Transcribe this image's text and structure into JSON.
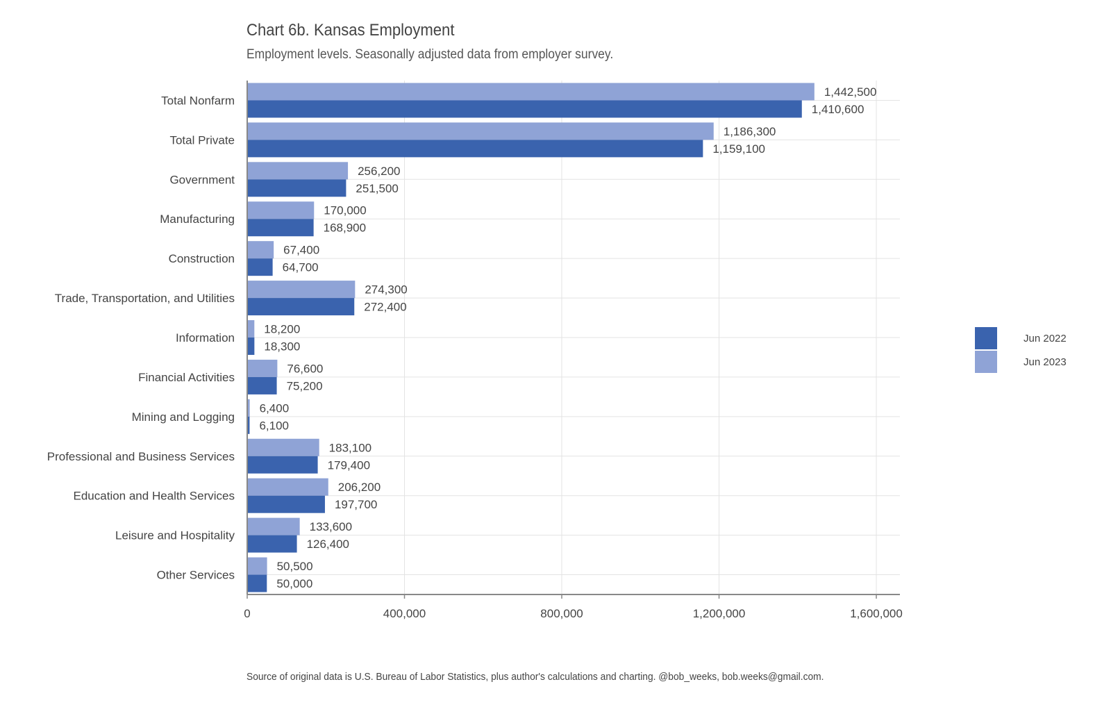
{
  "chart_data": {
    "type": "bar",
    "orientation": "horizontal",
    "title": "Chart 6b. Kansas Employment",
    "subtitle": "Employment levels. Seasonally adjusted data from employer survey.",
    "caption": "Source of original data is U.S. Bureau of Labor Statistics, plus author's calculations and charting. @bob_weeks, bob.weeks@gmail.com.",
    "categories": [
      "Total Nonfarm",
      "Total Private",
      "Government",
      "Manufacturing",
      "Construction",
      "Trade, Transportation, and Utilities",
      "Information",
      "Financial Activities",
      "Mining and Logging",
      "Professional and Business Services",
      "Education and Health Services",
      "Leisure and Hospitality",
      "Other Services"
    ],
    "series": [
      {
        "name": "Jun 2022",
        "color": "#3a63ae",
        "values": [
          1410600,
          1159100,
          251500,
          168900,
          64700,
          272400,
          18300,
          75200,
          6100,
          179400,
          197700,
          126400,
          50000
        ],
        "labels": [
          "1,410,600",
          "1,159,100",
          "251,500",
          "168,900",
          "64,700",
          "272,400",
          "18,300",
          "75,200",
          "6,100",
          "179,400",
          "197,700",
          "126,400",
          "50,000"
        ]
      },
      {
        "name": "Jun 2023",
        "color": "#8fa3d6",
        "values": [
          1442500,
          1186300,
          256200,
          170000,
          67400,
          274300,
          18200,
          76600,
          6400,
          183100,
          206200,
          133600,
          50500
        ],
        "labels": [
          "1,442,500",
          "1,186,300",
          "256,200",
          "170,000",
          "67,400",
          "274,300",
          "18,200",
          "76,600",
          "6,400",
          "183,100",
          "206,200",
          "133,600",
          "50,500"
        ]
      }
    ],
    "xlim": [
      0,
      1660000
    ],
    "xticks": [
      0,
      400000,
      800000,
      1200000,
      1600000
    ],
    "xtick_labels": [
      "0",
      "400,000",
      "800,000",
      "1,200,000",
      "1,600,000"
    ],
    "grid": true,
    "legend_position": "right"
  }
}
